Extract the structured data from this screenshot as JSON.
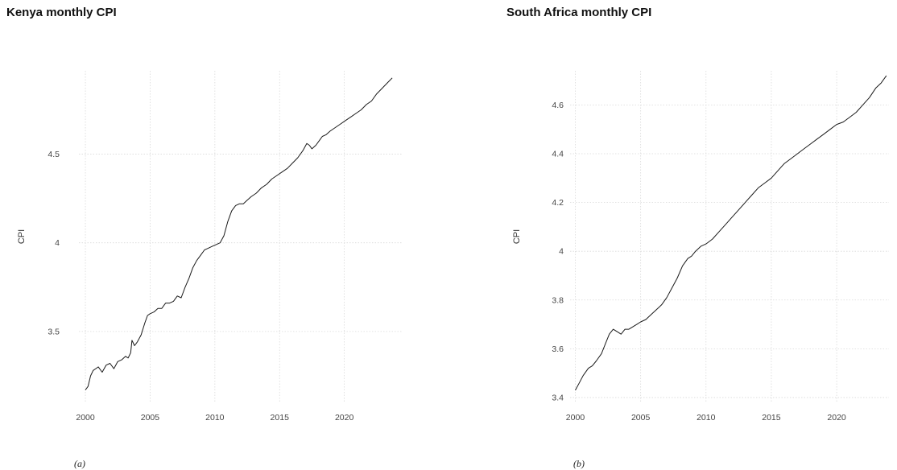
{
  "chart_data": [
    {
      "type": "line",
      "title": "Kenya monthly CPI",
      "ylabel": "CPI",
      "xlabel": "",
      "caption": "(a)",
      "xlim": [
        1999.5,
        2024.5
      ],
      "ylim": [
        3.1,
        4.97
      ],
      "x_ticks": [
        2000,
        2005,
        2010,
        2015,
        2020
      ],
      "x_tick_labels": [
        "2000",
        "2005",
        "2010",
        "2015",
        "2020"
      ],
      "y_ticks": [
        3.5,
        4.0,
        4.5
      ],
      "y_tick_labels": [
        "3.5",
        "4",
        "4.5"
      ],
      "grid": true,
      "series": [
        {
          "x": [
            2000.0,
            2000.2,
            2000.4,
            2000.6,
            2000.8,
            2001.0,
            2001.3,
            2001.6,
            2001.9,
            2002.2,
            2002.5,
            2002.8,
            2003.1,
            2003.3,
            2003.5,
            2003.6,
            2003.8,
            2004.0,
            2004.3,
            2004.6,
            2004.8,
            2005.0,
            2005.3,
            2005.6,
            2005.9,
            2006.2,
            2006.5,
            2006.8,
            2007.1,
            2007.4,
            2007.7,
            2008.0,
            2008.3,
            2008.6,
            2008.9,
            2009.2,
            2009.5,
            2009.8,
            2010.1,
            2010.4,
            2010.7,
            2011.0,
            2011.3,
            2011.6,
            2011.9,
            2012.2,
            2012.5,
            2012.8,
            2013.2,
            2013.6,
            2014.0,
            2014.4,
            2014.8,
            2015.2,
            2015.6,
            2016.0,
            2016.4,
            2016.8,
            2017.1,
            2017.3,
            2017.5,
            2017.8,
            2018.1,
            2018.3,
            2018.6,
            2018.9,
            2019.3,
            2019.7,
            2020.1,
            2020.5,
            2020.9,
            2021.3,
            2021.7,
            2022.1,
            2022.5,
            2022.9,
            2023.3,
            2023.7
          ],
          "values": [
            3.17,
            3.19,
            3.25,
            3.28,
            3.29,
            3.3,
            3.27,
            3.31,
            3.32,
            3.29,
            3.33,
            3.34,
            3.36,
            3.35,
            3.38,
            3.45,
            3.42,
            3.44,
            3.48,
            3.55,
            3.59,
            3.6,
            3.61,
            3.63,
            3.63,
            3.66,
            3.66,
            3.67,
            3.7,
            3.69,
            3.75,
            3.8,
            3.86,
            3.9,
            3.93,
            3.96,
            3.97,
            3.98,
            3.99,
            4.0,
            4.04,
            4.12,
            4.18,
            4.21,
            4.22,
            4.22,
            4.24,
            4.26,
            4.28,
            4.31,
            4.33,
            4.36,
            4.38,
            4.4,
            4.42,
            4.45,
            4.48,
            4.52,
            4.56,
            4.55,
            4.53,
            4.55,
            4.58,
            4.6,
            4.61,
            4.63,
            4.65,
            4.67,
            4.69,
            4.71,
            4.73,
            4.75,
            4.78,
            4.8,
            4.84,
            4.87,
            4.9,
            4.93
          ]
        }
      ]
    },
    {
      "type": "line",
      "title": "South Africa monthly CPI",
      "ylabel": "CPI",
      "xlabel": "",
      "caption": "(b)",
      "xlim": [
        1999.6,
        2024.0
      ],
      "ylim": [
        3.38,
        4.74
      ],
      "x_ticks": [
        2000,
        2005,
        2010,
        2015,
        2020
      ],
      "x_tick_labels": [
        "2000",
        "2005",
        "2010",
        "2015",
        "2020"
      ],
      "y_ticks": [
        3.4,
        3.6,
        3.8,
        4.0,
        4.2,
        4.4,
        4.6
      ],
      "y_tick_labels": [
        "3.4",
        "3.6",
        "3.8",
        "4",
        "4.2",
        "4.4",
        "4.6"
      ],
      "grid": true,
      "series": [
        {
          "x": [
            2000.0,
            2000.3,
            2000.6,
            2001.0,
            2001.3,
            2001.6,
            2002.0,
            2002.3,
            2002.6,
            2002.9,
            2003.2,
            2003.5,
            2003.8,
            2004.1,
            2004.4,
            2004.7,
            2005.0,
            2005.4,
            2005.8,
            2006.2,
            2006.6,
            2007.0,
            2007.4,
            2007.8,
            2008.2,
            2008.6,
            2008.9,
            2009.2,
            2009.6,
            2010.0,
            2010.5,
            2011.0,
            2011.5,
            2012.0,
            2012.5,
            2013.0,
            2013.5,
            2014.0,
            2014.5,
            2015.0,
            2015.5,
            2016.0,
            2016.5,
            2017.0,
            2017.5,
            2018.0,
            2018.5,
            2019.0,
            2019.5,
            2020.0,
            2020.5,
            2021.0,
            2021.5,
            2022.0,
            2022.5,
            2023.0,
            2023.4,
            2023.8
          ],
          "values": [
            3.43,
            3.46,
            3.49,
            3.52,
            3.53,
            3.55,
            3.58,
            3.62,
            3.66,
            3.68,
            3.67,
            3.66,
            3.68,
            3.68,
            3.69,
            3.7,
            3.71,
            3.72,
            3.74,
            3.76,
            3.78,
            3.81,
            3.85,
            3.89,
            3.94,
            3.97,
            3.98,
            4.0,
            4.02,
            4.03,
            4.05,
            4.08,
            4.11,
            4.14,
            4.17,
            4.2,
            4.23,
            4.26,
            4.28,
            4.3,
            4.33,
            4.36,
            4.38,
            4.4,
            4.42,
            4.44,
            4.46,
            4.48,
            4.5,
            4.52,
            4.53,
            4.55,
            4.57,
            4.6,
            4.63,
            4.67,
            4.69,
            4.72
          ]
        }
      ]
    }
  ]
}
